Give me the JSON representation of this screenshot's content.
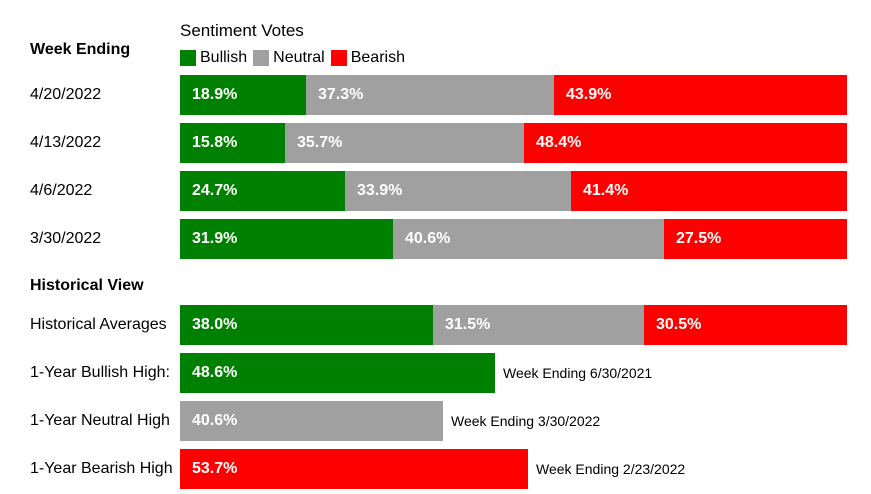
{
  "chart_data": {
    "type": "bar",
    "orientation": "horizontal",
    "stacked": true,
    "title": "Sentiment Votes",
    "legend": [
      "Bullish",
      "Neutral",
      "Bearish"
    ],
    "legend_placement": "top",
    "colors": {
      "Bullish": "#008000",
      "Neutral": "#a0a0a0",
      "Bearish": "#ff0000"
    },
    "weekly": {
      "heading": "Week Ending",
      "rows": [
        {
          "label": "4/20/2022",
          "values": [
            18.9,
            37.3,
            43.9
          ]
        },
        {
          "label": "4/13/2022",
          "values": [
            15.8,
            35.7,
            48.4
          ]
        },
        {
          "label": "4/6/2022",
          "values": [
            24.7,
            33.9,
            41.4
          ]
        },
        {
          "label": "3/30/2022",
          "values": [
            31.9,
            40.6,
            27.5
          ]
        }
      ]
    },
    "historical": {
      "heading": "Historical View",
      "averages": {
        "label": "Historical Averages",
        "values": [
          38.0,
          31.5,
          30.5
        ]
      },
      "highs": [
        {
          "label": "1-Year Bullish High:",
          "series": "Bullish",
          "value": 48.6,
          "note": "Week Ending 6/30/2021"
        },
        {
          "label": "1-Year Neutral High",
          "series": "Neutral",
          "value": 40.6,
          "note": "Week Ending 3/30/2022"
        },
        {
          "label": "1-Year Bearish High",
          "series": "Bearish",
          "value": 53.7,
          "note": "Week Ending 2/23/2022"
        }
      ]
    },
    "xlim": [
      0,
      100
    ]
  }
}
